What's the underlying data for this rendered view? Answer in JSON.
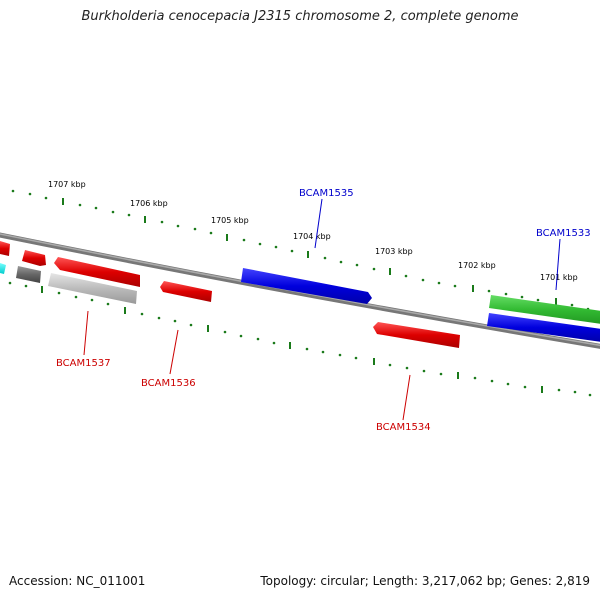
{
  "title": "Burkholderia cenocepacia J2315 chromosome 2, complete genome",
  "footer": {
    "accession": "Accession: NC_011001",
    "topology": "Topology: circular; Length: 3,217,062 bp; Genes: 2,819"
  },
  "scale_ticks": [
    "1707 kbp",
    "1706 kbp",
    "1705 kbp",
    "1704 kbp",
    "1703 kbp",
    "1702 kbp",
    "1701 kbp"
  ],
  "gene_labels": {
    "bcam1535": "BCAM1535",
    "bcam1533": "BCAM1533",
    "bcam1537": "BCAM1537",
    "bcam1536": "BCAM1536",
    "bcam1534": "BCAM1534"
  },
  "colors": {
    "forward_blue": "#0000dd",
    "reverse_red": "#dd0000",
    "green": "#33bb33",
    "gray": "#bbbbbb",
    "dark_gray": "#666666",
    "cyan": "#00dddd",
    "tick_green": "#1a7a1a",
    "backbone": "#888888"
  }
}
